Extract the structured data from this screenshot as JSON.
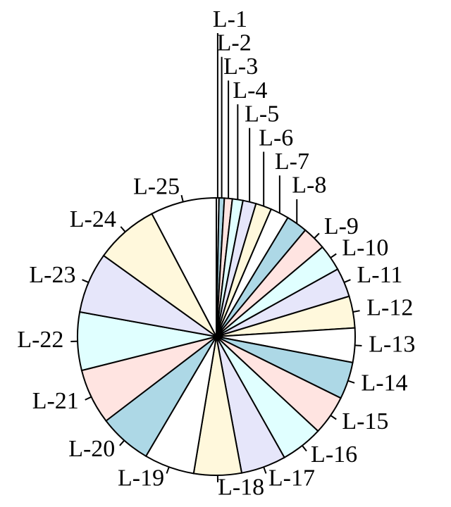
{
  "chart_data": {
    "type": "pie",
    "categories": [
      "L-1",
      "L-2",
      "L-3",
      "L-4",
      "L-5",
      "L-6",
      "L-7",
      "L-8",
      "L-9",
      "L-10",
      "L-11",
      "L-12",
      "L-13",
      "L-14",
      "L-15",
      "L-16",
      "L-17",
      "L-18",
      "L-19",
      "L-20",
      "L-21",
      "L-22",
      "L-23",
      "L-24",
      "L-25"
    ],
    "values": [
      1,
      2,
      3,
      4,
      5,
      6,
      7,
      8,
      9,
      10,
      11,
      12,
      13,
      14,
      15,
      16,
      17,
      18,
      19,
      20,
      21,
      22,
      23,
      24,
      25
    ],
    "colors": [
      "#ffffff",
      "#add8e6",
      "#ffe4e1",
      "#e0ffff",
      "#e6e6fa",
      "#fff8dc"
    ],
    "clockwise": true
  }
}
